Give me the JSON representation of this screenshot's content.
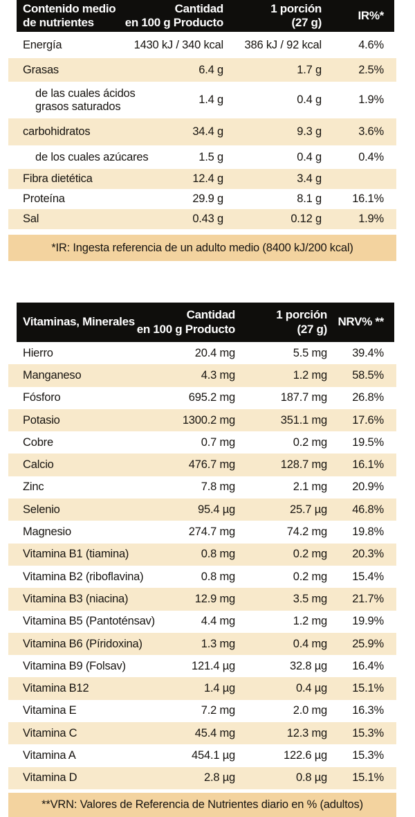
{
  "colors": {
    "header_bg": "#0f0e0c",
    "header_text": "#ffffff",
    "row_alt_bg": "#f8e9cb",
    "footnote_bg": "#f3d39f",
    "text": "#16130f"
  },
  "nutrients_table": {
    "header": {
      "title": "Contenido medio\nde nutrientes",
      "col_amount": "Cantidad\nen 100 g Producto",
      "col_portion": "1 porción\n(27 g)",
      "col_pct": "IR%*"
    },
    "rows": [
      {
        "label": "Energía",
        "per100": "1430 kJ / 340 kcal",
        "portion": "386 kJ / 92 kcal",
        "pct": "4.6%",
        "indent": false
      },
      {
        "label": "Grasas",
        "per100": "6.4 g",
        "portion": "1.7 g",
        "pct": "2.5%",
        "indent": false
      },
      {
        "label": "de las cuales ácidos\ngrasos saturados",
        "per100": "1.4 g",
        "portion": "0.4 g",
        "pct": "1.9%",
        "indent": true
      },
      {
        "label": "carbohidratos",
        "per100": "34.4 g",
        "portion": "9.3 g",
        "pct": "3.6%",
        "indent": false
      },
      {
        "label": "de los cuales azúcares",
        "per100": "1.5 g",
        "portion": "0.4 g",
        "pct": "0.4%",
        "indent": true
      },
      {
        "label": "Fibra dietética",
        "per100": "12.4 g",
        "portion": "3.4 g",
        "pct": "",
        "indent": false
      },
      {
        "label": "Proteína",
        "per100": "29.9 g",
        "portion": "8.1 g",
        "pct": "16.1%",
        "indent": false
      },
      {
        "label": "Sal",
        "per100": "0.43 g",
        "portion": "0.12 g",
        "pct": "1.9%",
        "indent": false
      }
    ],
    "footnote": "*IR: Ingesta referencia de un adulto medio (8400 kJ/200 kcal)"
  },
  "vitamins_table": {
    "header": {
      "title": "Vitaminas, Minerales",
      "col_amount": "Cantidad\nen 100 g Producto",
      "col_portion": "1 porción\n(27 g)",
      "col_pct": "NRV% **"
    },
    "rows": [
      {
        "label": "Hierro",
        "per100": "20.4 mg",
        "portion": "5.5 mg",
        "pct": "39.4%",
        "indent": false
      },
      {
        "label": "Manganeso",
        "per100": "4.3 mg",
        "portion": "1.2 mg",
        "pct": "58.5%",
        "indent": false
      },
      {
        "label": "Fósforo",
        "per100": "695.2 mg",
        "portion": "187.7 mg",
        "pct": "26.8%",
        "indent": false
      },
      {
        "label": "Potasio",
        "per100": "1300.2 mg",
        "portion": "351.1 mg",
        "pct": "17.6%",
        "indent": false
      },
      {
        "label": "Cobre",
        "per100": "0.7 mg",
        "portion": "0.2 mg",
        "pct": "19.5%",
        "indent": false
      },
      {
        "label": "Calcio",
        "per100": "476.7 mg",
        "portion": "128.7 mg",
        "pct": "16.1%",
        "indent": false
      },
      {
        "label": "Zinc",
        "per100": "7.8 mg",
        "portion": "2.1 mg",
        "pct": "20.9%",
        "indent": false
      },
      {
        "label": "Selenio",
        "per100": "95.4 µg",
        "portion": "25.7 µg",
        "pct": "46.8%",
        "indent": false
      },
      {
        "label": "Magnesio",
        "per100": "274.7 mg",
        "portion": "74.2 mg",
        "pct": "19.8%",
        "indent": false
      },
      {
        "label": "Vitamina B1 (tiamina)",
        "per100": "0.8 mg",
        "portion": "0.2 mg",
        "pct": "20.3%",
        "indent": false
      },
      {
        "label": "Vitamina B2 (riboflavina)",
        "per100": "0.8 mg",
        "portion": "0.2 mg",
        "pct": "15.4%",
        "indent": false
      },
      {
        "label": "Vitamina B3 (niacina)",
        "per100": "12.9 mg",
        "portion": "3.5 mg",
        "pct": "21.7%",
        "indent": false
      },
      {
        "label": "Vitamina B5 (Pantoténsav)",
        "per100": "4.4 mg",
        "portion": "1.2 mg",
        "pct": "19.9%",
        "indent": false
      },
      {
        "label": "Vitamina B6 (Píridoxina)",
        "per100": "1.3 mg",
        "portion": "0.4 mg",
        "pct": "25.9%",
        "indent": false
      },
      {
        "label": "Vitamina B9 (Folsav)",
        "per100": "121.4 µg",
        "portion": "32.8 µg",
        "pct": "16.4%",
        "indent": false
      },
      {
        "label": "Vitamina B12",
        "per100": "1.4 µg",
        "portion": "0.4 µg",
        "pct": "15.1%",
        "indent": false
      },
      {
        "label": "Vitamina E",
        "per100": "7.2 mg",
        "portion": "2.0 mg",
        "pct": "16.3%",
        "indent": false
      },
      {
        "label": "Vitamina C",
        "per100": "45.4 mg",
        "portion": "12.3 mg",
        "pct": "15.3%",
        "indent": false
      },
      {
        "label": "Vitamina A",
        "per100": "454.1 µg",
        "portion": "122.6 µg",
        "pct": "15.3%",
        "indent": false
      },
      {
        "label": "Vitamina D",
        "per100": "2.8 µg",
        "portion": "0.8 µg",
        "pct": "15.1%",
        "indent": false
      }
    ],
    "footnote": "**VRN: Valores de Referencia de Nutrientes diario en % (adultos)"
  }
}
